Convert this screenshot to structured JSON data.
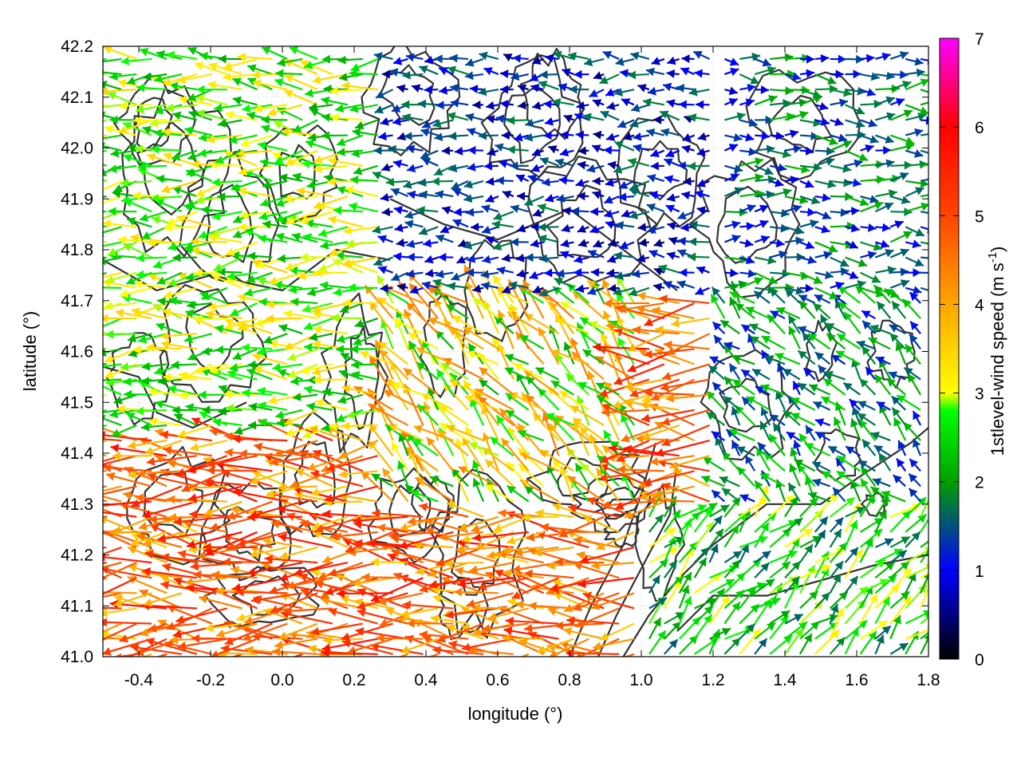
{
  "chart_data": {
    "type": "quiver",
    "xlabel": "longitude (°)",
    "ylabel": "latitude (°)",
    "xlim": [
      -0.5,
      1.8
    ],
    "ylim": [
      41.0,
      42.2
    ],
    "xticks": [
      "-0.4",
      "-0.2",
      "0.0",
      "0.2",
      "0.4",
      "0.6",
      "0.8",
      "1.0",
      "1.2",
      "1.4",
      "1.6",
      "1.8"
    ],
    "yticks": [
      "41.0",
      "41.1",
      "41.2",
      "41.3",
      "41.4",
      "41.5",
      "41.6",
      "41.7",
      "41.8",
      "41.9",
      "42.0",
      "42.1",
      "42.2"
    ],
    "grid": true,
    "colorbar": {
      "label_main": "1stlevel-wind speed (m s",
      "label_sup": "-1",
      "label_end": ")",
      "range": [
        0,
        7
      ],
      "ticks": [
        "0",
        "1",
        "2",
        "3",
        "4",
        "5",
        "6",
        "7"
      ],
      "colors": [
        "#000000",
        "#0000ff",
        "#00b000",
        "#00ff00",
        "#ffff00",
        "#ffa500",
        "#ff0000",
        "#ff00ff"
      ]
    },
    "wind_regions": [
      {
        "area": "west",
        "lon": [
          -0.5,
          0.3
        ],
        "lat": [
          41.0,
          41.45
        ],
        "direction": "westward",
        "speed": [
          3.5,
          5.8
        ]
      },
      {
        "area": "northwest",
        "lon": [
          -0.5,
          0.3
        ],
        "lat": [
          41.45,
          42.2
        ],
        "direction": "westward",
        "speed": [
          2.0,
          3.5
        ]
      },
      {
        "area": "north-central",
        "lon": [
          0.3,
          1.2
        ],
        "lat": [
          41.7,
          42.2
        ],
        "direction": "westward",
        "speed": [
          0.5,
          1.8
        ]
      },
      {
        "area": "central",
        "lon": [
          0.3,
          1.0
        ],
        "lat": [
          41.3,
          41.7
        ],
        "direction": "northwestward",
        "speed": [
          2.0,
          4.5
        ]
      },
      {
        "area": "southeast",
        "lon": [
          1.0,
          1.8
        ],
        "lat": [
          41.0,
          41.3
        ],
        "direction": "northeastward",
        "speed": [
          1.5,
          3.2
        ]
      },
      {
        "area": "east",
        "lon": [
          1.2,
          1.8
        ],
        "lat": [
          41.3,
          41.7
        ],
        "direction": "northwestward",
        "speed": [
          1.0,
          2.5
        ]
      },
      {
        "area": "northeast",
        "lon": [
          1.2,
          1.8
        ],
        "lat": [
          41.7,
          42.2
        ],
        "direction": "eastward",
        "speed": [
          0.8,
          2.2
        ]
      }
    ]
  }
}
